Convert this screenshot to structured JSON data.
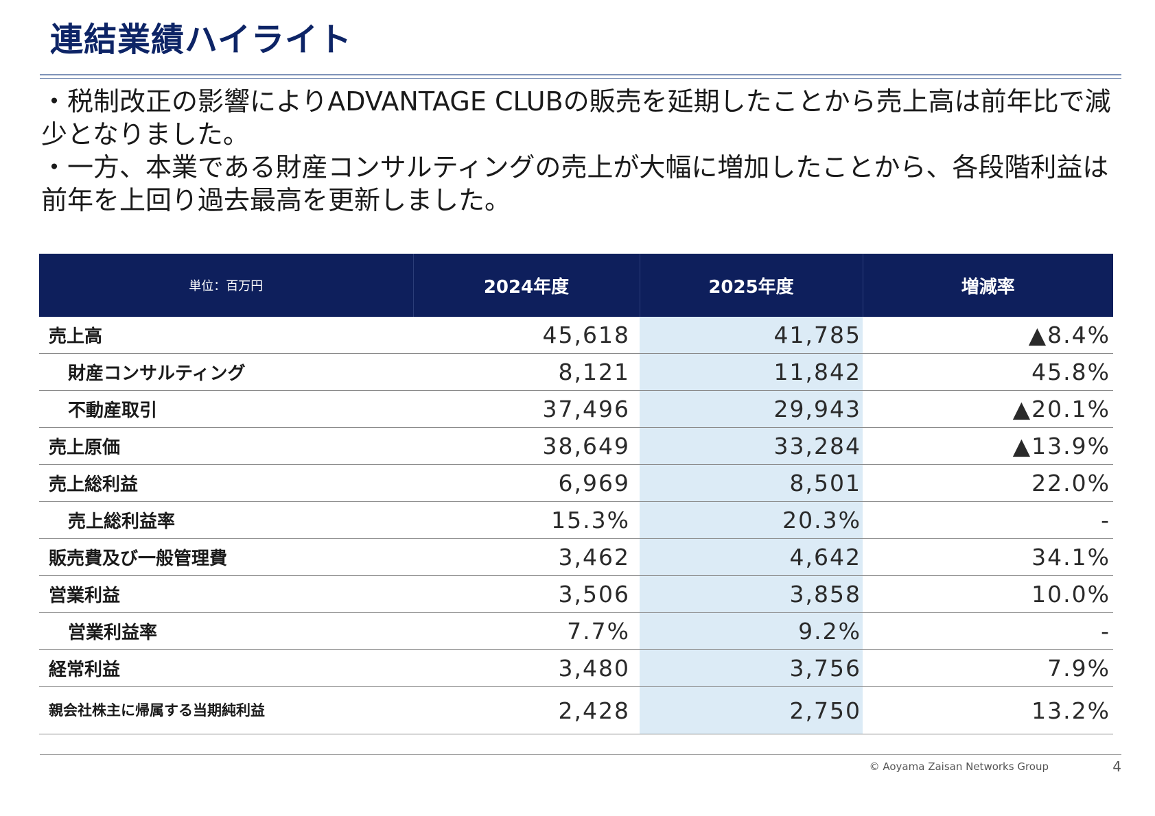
{
  "header": {
    "title": "連結業績ハイライト"
  },
  "bullets": [
    "・税制改正の影響によりADVANTAGE CLUBの販売を延期したことから売上高は前年比で減少となりました。",
    "・一方、本業である財産コンサルティングの売上が大幅に増加したことから、各段階利益は前年を上回り過去最高を更新しました。"
  ],
  "table": {
    "headers": {
      "unit": "単位：百万円",
      "fy2024": "2024年度",
      "fy2025": "2025年度",
      "change": "増減率"
    },
    "rows": [
      {
        "label": "売上高",
        "v2024": "45,618",
        "v2025": "41,785",
        "change": "▲8.4%"
      },
      {
        "label": "財産コンサルティング",
        "v2024": "8,121",
        "v2025": "11,842",
        "change": "45.8%"
      },
      {
        "label": "不動産取引",
        "v2024": "37,496",
        "v2025": "29,943",
        "change": "▲20.1%"
      },
      {
        "label": "売上原価",
        "v2024": "38,649",
        "v2025": "33,284",
        "change": "▲13.9%"
      },
      {
        "label": "売上総利益",
        "v2024": "6,969",
        "v2025": "8,501",
        "change": "22.0%"
      },
      {
        "label": "売上総利益率",
        "v2024": "15.3%",
        "v2025": "20.3%",
        "change": "-"
      },
      {
        "label": "販売費及び一般管理費",
        "v2024": "3,462",
        "v2025": "4,642",
        "change": "34.1%"
      },
      {
        "label": "営業利益",
        "v2024": "3,506",
        "v2025": "3,858",
        "change": "10.0%"
      },
      {
        "label": "営業利益率",
        "v2024": "7.7%",
        "v2025": "9.2%",
        "change": "-"
      },
      {
        "label": "経常利益",
        "v2024": "3,480",
        "v2025": "3,756",
        "change": "7.9%"
      },
      {
        "label": "親会社株主に帰属する当期純利益",
        "v2024": "2,428",
        "v2025": "2,750",
        "change": "13.2%"
      }
    ]
  },
  "footer": {
    "copyright": "© Aoyama Zaisan Networks Group",
    "page": "4"
  }
}
